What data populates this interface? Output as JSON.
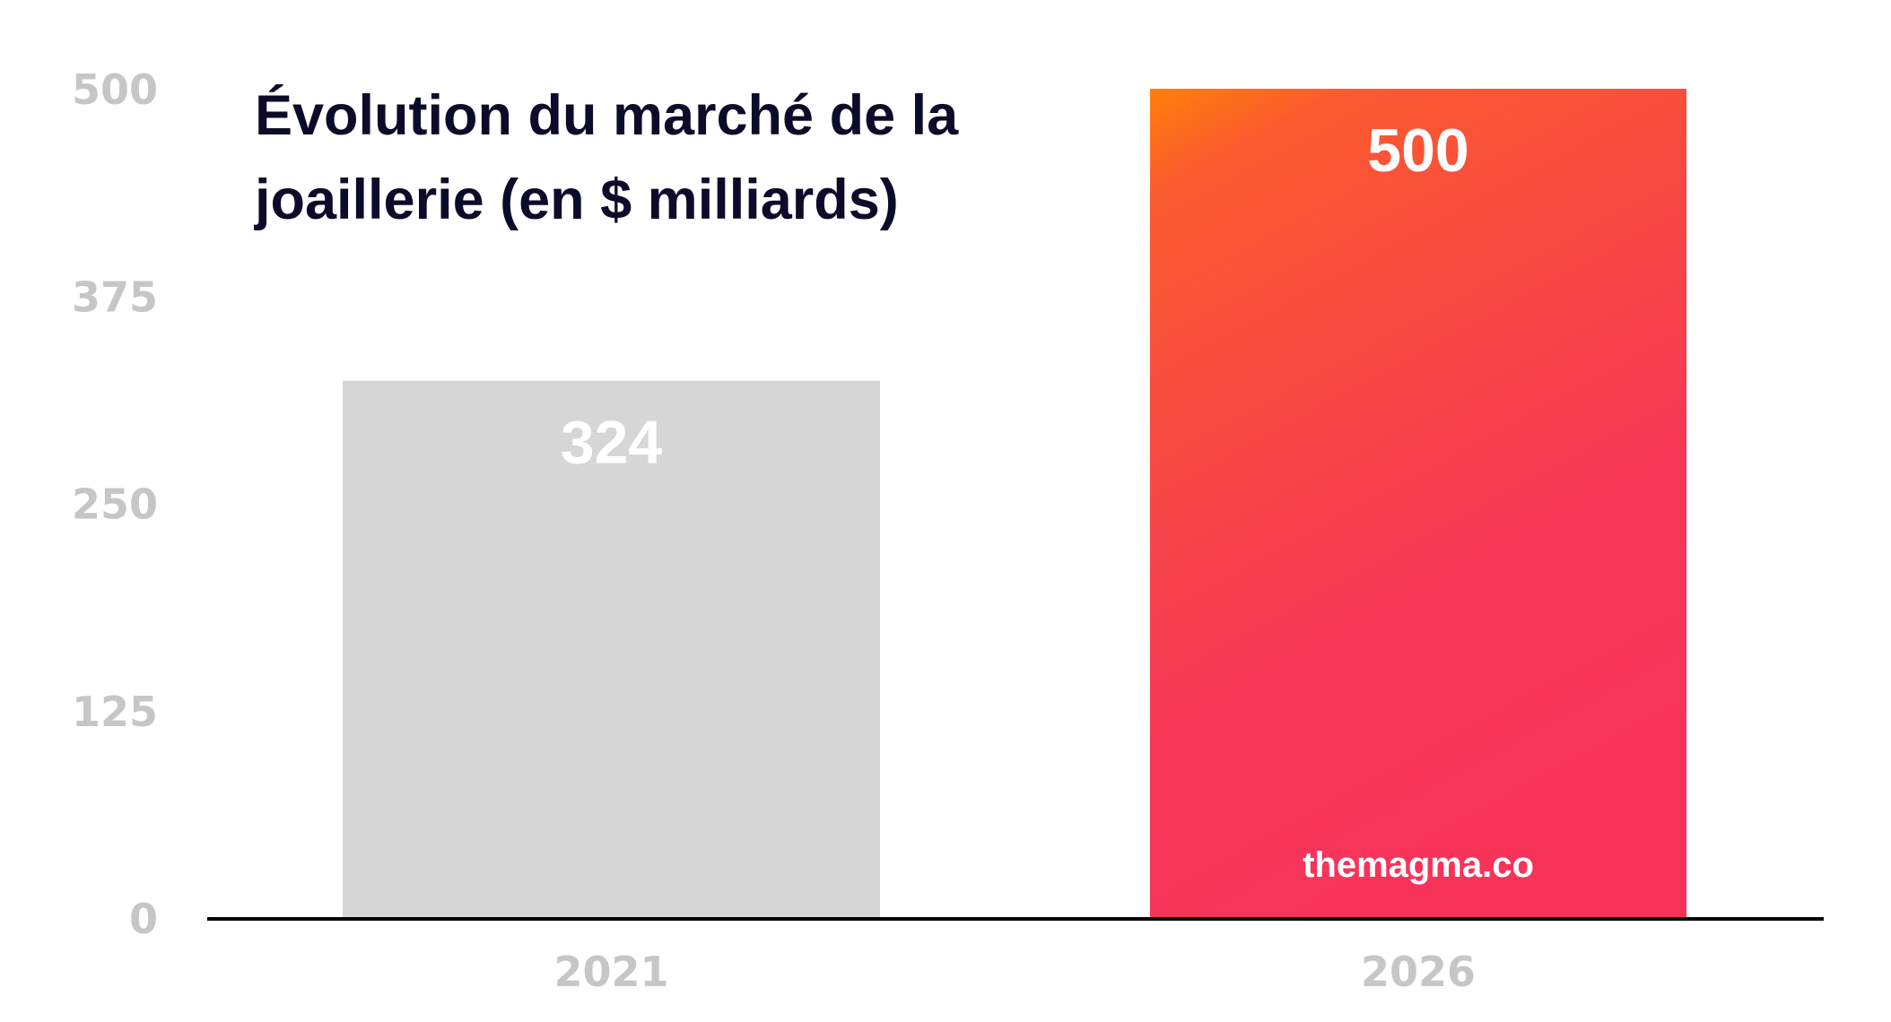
{
  "chart_data": {
    "type": "bar",
    "title": "Évolution du marché de la joaillerie (en $ milliards)",
    "categories": [
      "2021",
      "2026"
    ],
    "values": [
      324,
      500
    ],
    "value_labels": [
      "324",
      "500"
    ],
    "xlabel": "",
    "ylabel": "",
    "ylim": [
      0,
      500
    ],
    "yticks": [
      0,
      125,
      250,
      375,
      500
    ],
    "ytick_labels": [
      "0",
      "125",
      "250",
      "375",
      "500"
    ],
    "grid": false,
    "bar_colors": [
      "#d6d6d6",
      "gradient:#ff7f0a-#f7335a"
    ],
    "watermark": "themagma.co"
  }
}
